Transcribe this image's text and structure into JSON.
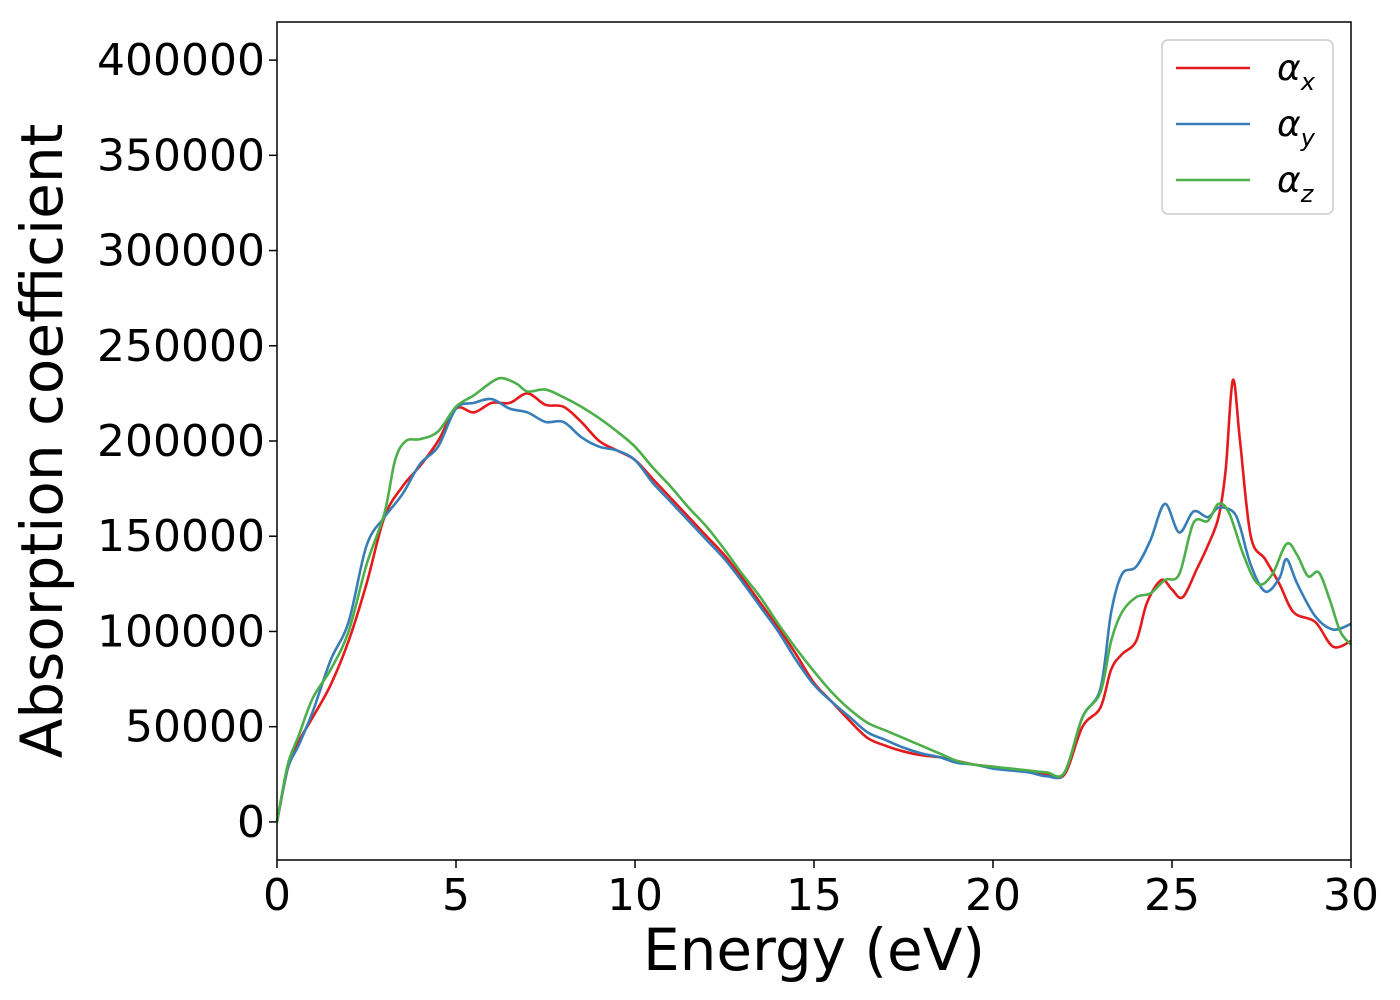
{
  "chart_data": {
    "type": "line",
    "xlabel": "Energy (eV)",
    "ylabel": "Absorption coefficient",
    "xlim": [
      0,
      30
    ],
    "ylim": [
      -20000,
      420000
    ],
    "xticks": [
      0,
      5,
      10,
      15,
      20,
      25,
      30
    ],
    "xtick_labels": [
      "0",
      "5",
      "10",
      "15",
      "20",
      "25",
      "30"
    ],
    "yticks": [
      0,
      50000,
      100000,
      150000,
      200000,
      250000,
      300000,
      350000,
      400000
    ],
    "ytick_labels": [
      "0",
      "50000",
      "100000",
      "150000",
      "200000",
      "250000",
      "300000",
      "350000",
      "400000"
    ],
    "grid": false,
    "legend_position": "top-right",
    "series": [
      {
        "name": "α_x",
        "label_main": "α",
        "label_sub": "x",
        "color": "#e41a1c",
        "points": [
          [
            0,
            0
          ],
          [
            0.3,
            28000
          ],
          [
            0.6,
            42000
          ],
          [
            1,
            55000
          ],
          [
            1.5,
            72000
          ],
          [
            2,
            95000
          ],
          [
            2.5,
            125000
          ],
          [
            3,
            160000
          ],
          [
            3.5,
            176000
          ],
          [
            4,
            187000
          ],
          [
            4.5,
            200000
          ],
          [
            5,
            217000
          ],
          [
            5.5,
            215000
          ],
          [
            6,
            220000
          ],
          [
            6.5,
            220000
          ],
          [
            7,
            225000
          ],
          [
            7.5,
            219000
          ],
          [
            8,
            218000
          ],
          [
            8.5,
            210000
          ],
          [
            9,
            200000
          ],
          [
            9.5,
            195000
          ],
          [
            10,
            190000
          ],
          [
            10.5,
            180000
          ],
          [
            11,
            170000
          ],
          [
            11.5,
            160000
          ],
          [
            12,
            150000
          ],
          [
            12.5,
            140000
          ],
          [
            13,
            128000
          ],
          [
            13.5,
            115000
          ],
          [
            14,
            102000
          ],
          [
            14.5,
            88000
          ],
          [
            15,
            73000
          ],
          [
            15.5,
            63000
          ],
          [
            16,
            53000
          ],
          [
            16.5,
            44000
          ],
          [
            17,
            40000
          ],
          [
            17.5,
            37000
          ],
          [
            18,
            35000
          ],
          [
            18.5,
            34000
          ],
          [
            19,
            32000
          ],
          [
            19.5,
            30000
          ],
          [
            20,
            29000
          ],
          [
            20.5,
            27500
          ],
          [
            21,
            26500
          ],
          [
            21.5,
            25000
          ],
          [
            22,
            25000
          ],
          [
            22.5,
            50000
          ],
          [
            23,
            60000
          ],
          [
            23.3,
            80000
          ],
          [
            23.6,
            88000
          ],
          [
            24,
            95000
          ],
          [
            24.3,
            115000
          ],
          [
            24.7,
            127000
          ],
          [
            25,
            122000
          ],
          [
            25.3,
            118000
          ],
          [
            25.7,
            133000
          ],
          [
            26,
            145000
          ],
          [
            26.3,
            160000
          ],
          [
            26.5,
            185000
          ],
          [
            26.7,
            232000
          ],
          [
            26.9,
            200000
          ],
          [
            27.2,
            150000
          ],
          [
            27.6,
            138000
          ],
          [
            28,
            125000
          ],
          [
            28.4,
            110000
          ],
          [
            29,
            105000
          ],
          [
            29.5,
            92000
          ],
          [
            30,
            95000
          ]
        ]
      },
      {
        "name": "α_y",
        "label_main": "α",
        "label_sub": "y",
        "color": "#377eb8",
        "points": [
          [
            0,
            0
          ],
          [
            0.3,
            28000
          ],
          [
            0.6,
            40000
          ],
          [
            1,
            58000
          ],
          [
            1.5,
            85000
          ],
          [
            2,
            105000
          ],
          [
            2.5,
            145000
          ],
          [
            3,
            160000
          ],
          [
            3.5,
            172000
          ],
          [
            4,
            188000
          ],
          [
            4.5,
            197000
          ],
          [
            5,
            217000
          ],
          [
            5.5,
            220000
          ],
          [
            6,
            222000
          ],
          [
            6.5,
            217000
          ],
          [
            7,
            215000
          ],
          [
            7.5,
            210000
          ],
          [
            8,
            210000
          ],
          [
            8.5,
            202000
          ],
          [
            9,
            197000
          ],
          [
            9.5,
            195000
          ],
          [
            10,
            190000
          ],
          [
            10.5,
            178000
          ],
          [
            11,
            168000
          ],
          [
            11.5,
            158000
          ],
          [
            12,
            148000
          ],
          [
            12.5,
            138000
          ],
          [
            13,
            126000
          ],
          [
            13.5,
            113000
          ],
          [
            14,
            100000
          ],
          [
            14.5,
            85000
          ],
          [
            15,
            72000
          ],
          [
            15.5,
            63000
          ],
          [
            16,
            55000
          ],
          [
            16.5,
            47000
          ],
          [
            17,
            43000
          ],
          [
            17.5,
            39000
          ],
          [
            18,
            36000
          ],
          [
            18.5,
            34000
          ],
          [
            19,
            31000
          ],
          [
            19.5,
            30000
          ],
          [
            20,
            28000
          ],
          [
            20.5,
            27000
          ],
          [
            21,
            26000
          ],
          [
            21.5,
            24000
          ],
          [
            22,
            26000
          ],
          [
            22.5,
            55000
          ],
          [
            23,
            70000
          ],
          [
            23.3,
            110000
          ],
          [
            23.6,
            130000
          ],
          [
            24,
            134000
          ],
          [
            24.4,
            148000
          ],
          [
            24.8,
            167000
          ],
          [
            25.2,
            152000
          ],
          [
            25.6,
            163000
          ],
          [
            26,
            160000
          ],
          [
            26.3,
            165000
          ],
          [
            26.7,
            163000
          ],
          [
            26.9,
            155000
          ],
          [
            27.2,
            135000
          ],
          [
            27.6,
            121000
          ],
          [
            28,
            128000
          ],
          [
            28.2,
            138000
          ],
          [
            28.5,
            125000
          ],
          [
            29,
            108000
          ],
          [
            29.5,
            101000
          ],
          [
            30,
            104000
          ]
        ]
      },
      {
        "name": "α_z",
        "label_main": "α",
        "label_sub": "z",
        "color": "#4daf4a",
        "points": [
          [
            0,
            0
          ],
          [
            0.3,
            30000
          ],
          [
            0.6,
            45000
          ],
          [
            1,
            65000
          ],
          [
            1.5,
            80000
          ],
          [
            2,
            100000
          ],
          [
            2.5,
            135000
          ],
          [
            3,
            162000
          ],
          [
            3.3,
            190000
          ],
          [
            3.6,
            200000
          ],
          [
            4,
            201000
          ],
          [
            4.5,
            205000
          ],
          [
            5,
            218000
          ],
          [
            5.5,
            224000
          ],
          [
            6,
            231000
          ],
          [
            6.3,
            233000
          ],
          [
            6.7,
            230000
          ],
          [
            7,
            226000
          ],
          [
            7.5,
            227000
          ],
          [
            8,
            223000
          ],
          [
            8.5,
            218000
          ],
          [
            9,
            212000
          ],
          [
            9.5,
            205000
          ],
          [
            10,
            197000
          ],
          [
            10.5,
            186000
          ],
          [
            11,
            176000
          ],
          [
            11.5,
            165000
          ],
          [
            12,
            155000
          ],
          [
            12.5,
            143000
          ],
          [
            13,
            130000
          ],
          [
            13.5,
            118000
          ],
          [
            14,
            104000
          ],
          [
            14.5,
            91000
          ],
          [
            15,
            79000
          ],
          [
            15.5,
            68000
          ],
          [
            16,
            59000
          ],
          [
            16.5,
            52000
          ],
          [
            17,
            48000
          ],
          [
            17.5,
            44000
          ],
          [
            18,
            40000
          ],
          [
            18.5,
            36000
          ],
          [
            19,
            32000
          ],
          [
            19.5,
            30000
          ],
          [
            20,
            29000
          ],
          [
            20.5,
            28000
          ],
          [
            21,
            27000
          ],
          [
            21.5,
            26000
          ],
          [
            22,
            26000
          ],
          [
            22.5,
            55000
          ],
          [
            23,
            68000
          ],
          [
            23.3,
            95000
          ],
          [
            23.6,
            110000
          ],
          [
            24,
            118000
          ],
          [
            24.4,
            120000
          ],
          [
            24.8,
            127000
          ],
          [
            25.2,
            130000
          ],
          [
            25.6,
            157000
          ],
          [
            26,
            158000
          ],
          [
            26.3,
            167000
          ],
          [
            26.6,
            162000
          ],
          [
            27,
            140000
          ],
          [
            27.4,
            125000
          ],
          [
            27.8,
            130000
          ],
          [
            28.2,
            146000
          ],
          [
            28.5,
            140000
          ],
          [
            28.8,
            129000
          ],
          [
            29.1,
            131000
          ],
          [
            29.4,
            117000
          ],
          [
            29.7,
            100000
          ],
          [
            30,
            93000
          ]
        ]
      }
    ]
  }
}
